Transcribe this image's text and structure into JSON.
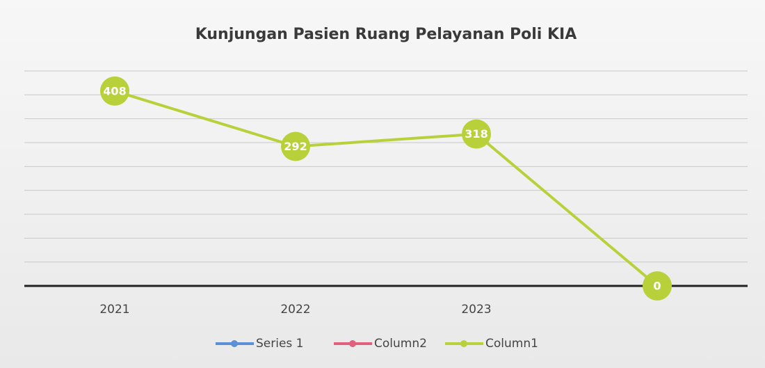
{
  "chart_data": {
    "type": "line",
    "title": "Kunjungan Pasien Ruang Pelayanan Poli KIA",
    "categories": [
      "2021",
      "2022",
      "2023",
      null
    ],
    "series": [
      {
        "name": "Series 1",
        "color": "#5b8fd6",
        "values": [
          null,
          null,
          null,
          null
        ]
      },
      {
        "name": "Column2",
        "color": "#e0607e",
        "values": [
          null,
          null,
          null,
          null
        ]
      },
      {
        "name": "Column1",
        "color": "#b8d13a",
        "values": [
          408,
          292,
          318,
          0
        ]
      }
    ],
    "ylim": [
      0,
      450
    ],
    "yticks": [
      0,
      50,
      100,
      150,
      200,
      250,
      300,
      350,
      400,
      450
    ],
    "grid": true,
    "legend": "bottom"
  }
}
